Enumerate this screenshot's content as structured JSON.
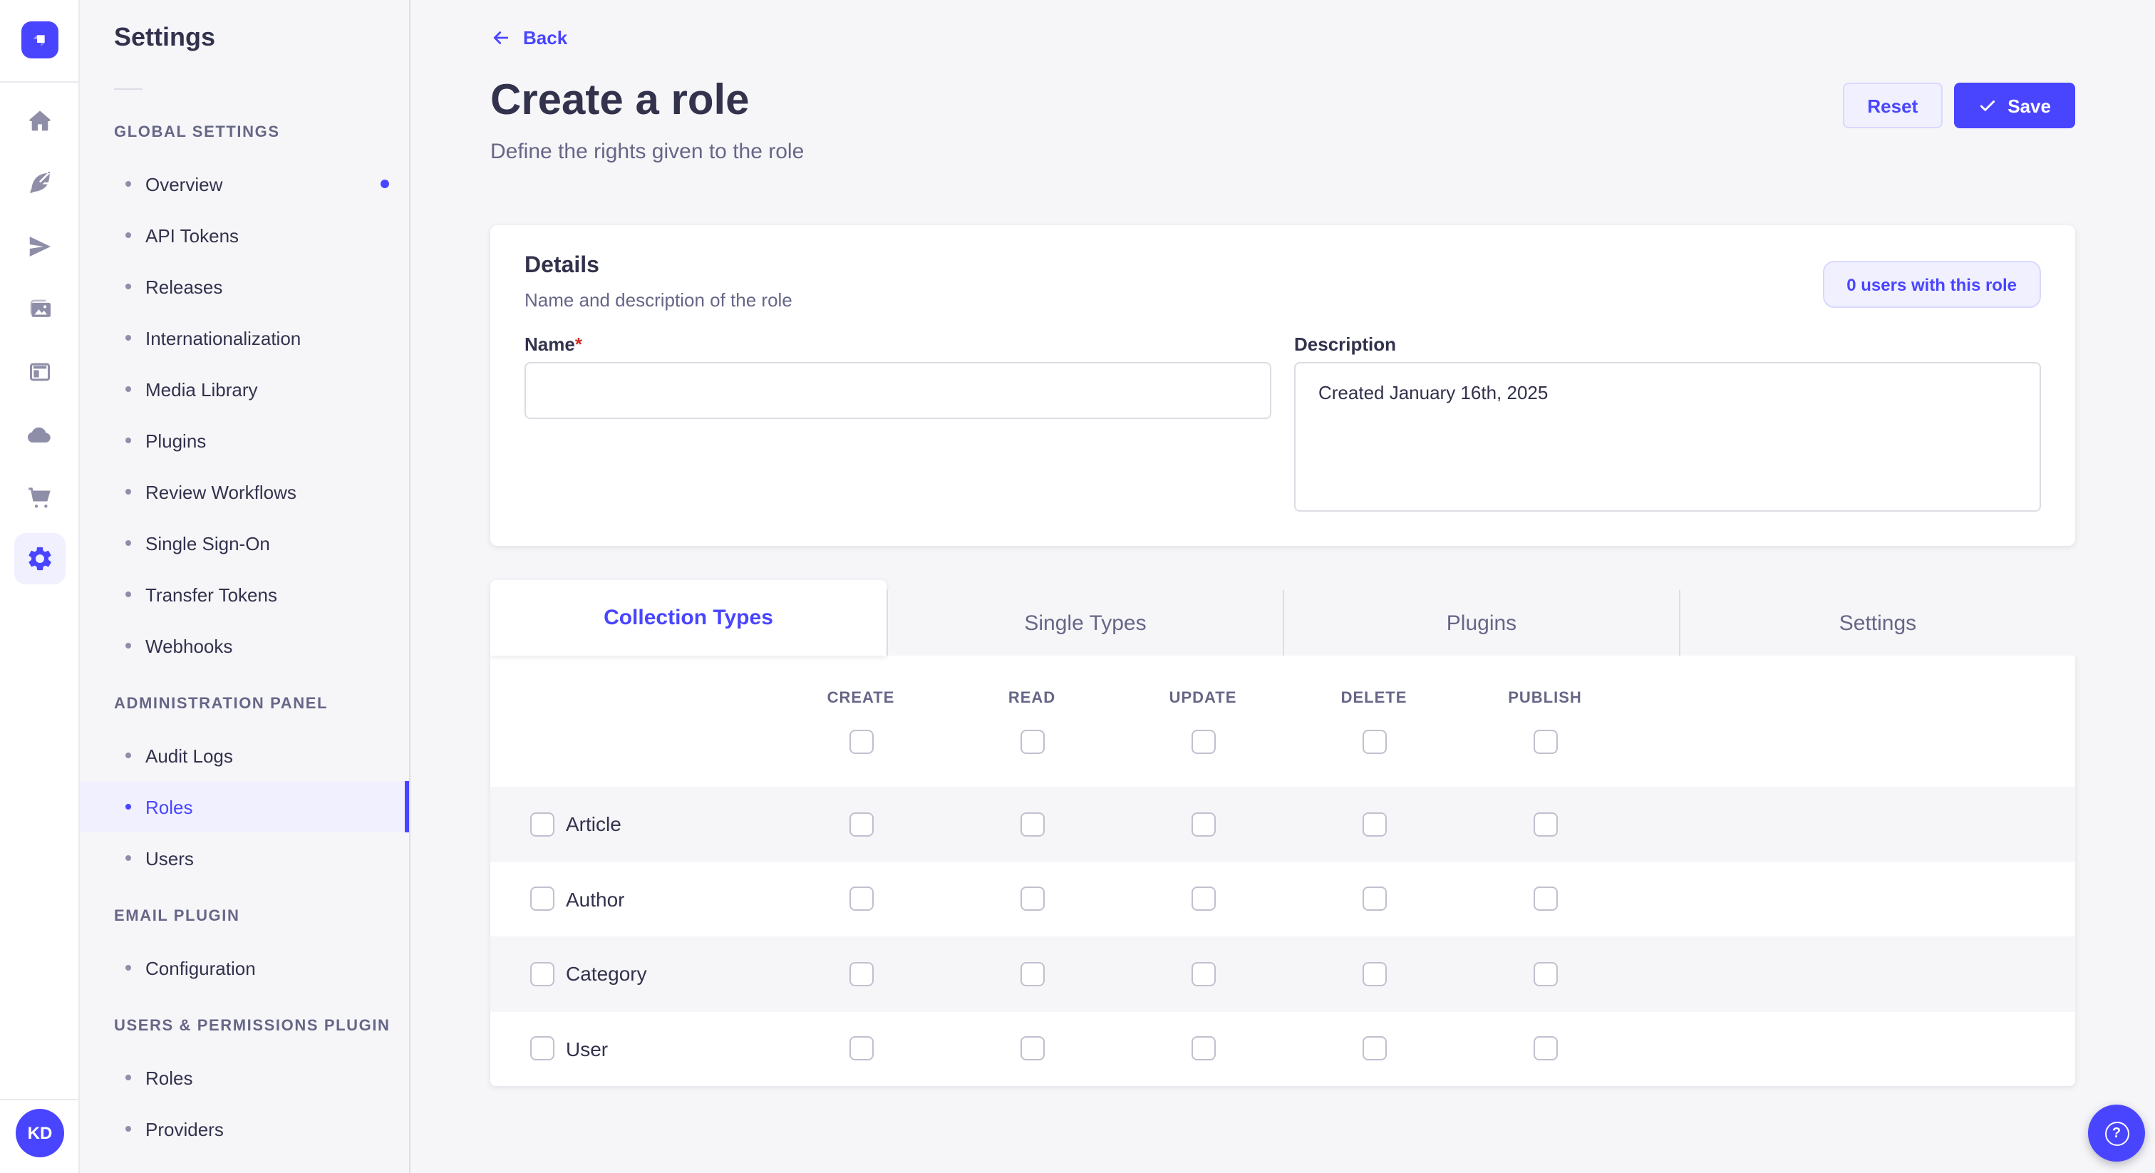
{
  "colors": {
    "primary": "#4945ff",
    "primary_light": "#f0f0ff",
    "text_dark": "#32324d",
    "text_gray": "#666687",
    "bg": "#f6f6f9",
    "border": "#dcdce4",
    "danger": "#d02b20"
  },
  "rail": {
    "logo_icon": "strapi-logo",
    "icons": [
      "home-icon",
      "feather-icon",
      "paper-plane-icon",
      "images-icon",
      "layout-icon",
      "cloud-icon",
      "cart-icon",
      "gear-icon"
    ],
    "active_icon": "gear-icon",
    "avatar_initials": "KD"
  },
  "sidebar": {
    "title": "Settings",
    "sections": [
      {
        "label": "GLOBAL SETTINGS",
        "items": [
          {
            "label": "Overview",
            "active": false,
            "dot": true
          },
          {
            "label": "API Tokens",
            "active": false,
            "dot": false
          },
          {
            "label": "Releases",
            "active": false,
            "dot": false
          },
          {
            "label": "Internationalization",
            "active": false,
            "dot": false
          },
          {
            "label": "Media Library",
            "active": false,
            "dot": false
          },
          {
            "label": "Plugins",
            "active": false,
            "dot": false
          },
          {
            "label": "Review Workflows",
            "active": false,
            "dot": false
          },
          {
            "label": "Single Sign-On",
            "active": false,
            "dot": false
          },
          {
            "label": "Transfer Tokens",
            "active": false,
            "dot": false
          },
          {
            "label": "Webhooks",
            "active": false,
            "dot": false
          }
        ]
      },
      {
        "label": "ADMINISTRATION PANEL",
        "items": [
          {
            "label": "Audit Logs",
            "active": false,
            "dot": false
          },
          {
            "label": "Roles",
            "active": true,
            "dot": false
          },
          {
            "label": "Users",
            "active": false,
            "dot": false
          }
        ]
      },
      {
        "label": "EMAIL PLUGIN",
        "items": [
          {
            "label": "Configuration",
            "active": false,
            "dot": false
          }
        ]
      },
      {
        "label": "USERS & PERMISSIONS PLUGIN",
        "items": [
          {
            "label": "Roles",
            "active": false,
            "dot": false
          },
          {
            "label": "Providers",
            "active": false,
            "dot": false
          }
        ]
      }
    ]
  },
  "header": {
    "back_label": "Back",
    "title": "Create a role",
    "subtitle": "Define the rights given to the role",
    "reset_label": "Reset",
    "save_label": "Save"
  },
  "details_card": {
    "title": "Details",
    "subtitle": "Name and description of the role",
    "users_badge": "0 users with this role",
    "name_label": "Name",
    "name_required_mark": "*",
    "name_value": "",
    "description_label": "Description",
    "description_value": "Created January 16th, 2025"
  },
  "permissions": {
    "tabs": [
      {
        "label": "Collection Types",
        "active": true
      },
      {
        "label": "Single Types",
        "active": false
      },
      {
        "label": "Plugins",
        "active": false
      },
      {
        "label": "Settings",
        "active": false
      }
    ],
    "columns": [
      "CREATE",
      "READ",
      "UPDATE",
      "DELETE",
      "PUBLISH"
    ],
    "rows": [
      {
        "label": "Article",
        "checked": [
          false,
          false,
          false,
          false,
          false
        ]
      },
      {
        "label": "Author",
        "checked": [
          false,
          false,
          false,
          false,
          false
        ]
      },
      {
        "label": "Category",
        "checked": [
          false,
          false,
          false,
          false,
          false
        ]
      },
      {
        "label": "User",
        "checked": [
          false,
          false,
          false,
          false,
          false
        ]
      }
    ]
  },
  "fab": {
    "icon": "help-icon"
  }
}
